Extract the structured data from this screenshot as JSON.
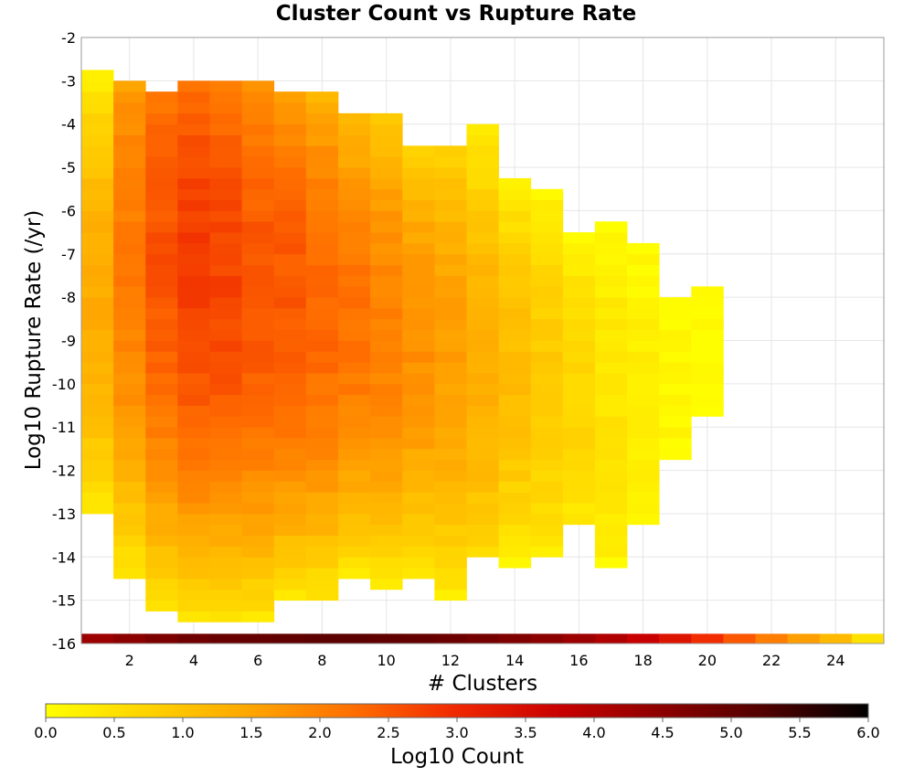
{
  "chart_data": {
    "type": "heatmap",
    "title": "Cluster Count vs Rupture Rate",
    "xlabel": "# Clusters",
    "ylabel": "Log10 Rupture Rate (/yr)",
    "xlim": [
      0.5,
      25.5
    ],
    "ylim": [
      -16,
      -2
    ],
    "x_ticks": [
      2,
      4,
      6,
      8,
      10,
      12,
      14,
      16,
      18,
      20,
      22,
      24
    ],
    "y_ticks": [
      -2,
      -3,
      -4,
      -5,
      -6,
      -7,
      -8,
      -9,
      -10,
      -11,
      -12,
      -13,
      -14,
      -15,
      -16
    ],
    "bin_width_x": 1,
    "bin_height_y": 0.25,
    "grid": true,
    "colorbar": {
      "label": "Log10 Count",
      "range": [
        0.0,
        6.0
      ],
      "ticks": [
        "0.0",
        "0.5",
        "1.0",
        "1.5",
        "2.0",
        "2.5",
        "3.0",
        "3.5",
        "4.0",
        "4.5",
        "5.0",
        "5.5",
        "6.0"
      ],
      "colormap": [
        "#ffff00",
        "#ffd200",
        "#ffa500",
        "#ff6e00",
        "#f02800",
        "#c80000",
        "#8c0000",
        "#500000",
        "#000000"
      ],
      "placement": "bottom"
    },
    "columns": [
      {
        "x": 1,
        "y_range": [
          -13.0,
          -2.75
        ],
        "peak_y": -8.0,
        "peak_value": 1.4
      },
      {
        "x": 2,
        "y_range": [
          -14.5,
          -3.0
        ],
        "peak_y": -7.0,
        "peak_value": 2.1
      },
      {
        "x": 3,
        "y_range": [
          -15.25,
          -3.25
        ],
        "peak_y": -7.0,
        "peak_value": 2.55
      },
      {
        "x": 4,
        "y_range": [
          -15.5,
          -3.0
        ],
        "peak_y": -7.25,
        "peak_value": 2.8
      },
      {
        "x": 5,
        "y_range": [
          -15.5,
          -3.0
        ],
        "peak_y": -7.5,
        "peak_value": 2.7
      },
      {
        "x": 6,
        "y_range": [
          -15.5,
          -3.0
        ],
        "peak_y": -7.75,
        "peak_value": 2.55
      },
      {
        "x": 7,
        "y_range": [
          -15.0,
          -3.25
        ],
        "peak_y": -8.0,
        "peak_value": 2.5
      },
      {
        "x": 8,
        "y_range": [
          -15.0,
          -3.25
        ],
        "peak_y": -8.25,
        "peak_value": 2.35
      },
      {
        "x": 9,
        "y_range": [
          -14.5,
          -3.75
        ],
        "peak_y": -8.5,
        "peak_value": 2.2
      },
      {
        "x": 10,
        "y_range": [
          -14.75,
          -3.75
        ],
        "peak_y": -8.75,
        "peak_value": 2.0
      },
      {
        "x": 11,
        "y_range": [
          -14.5,
          -4.5
        ],
        "peak_y": -9.0,
        "peak_value": 1.8
      },
      {
        "x": 12,
        "y_range": [
          -15.0,
          -4.5
        ],
        "peak_y": -9.25,
        "peak_value": 1.6
      },
      {
        "x": 13,
        "y_range": [
          -14.0,
          -4.0
        ],
        "peak_y": -9.5,
        "peak_value": 1.35
      },
      {
        "x": 14,
        "y_range": [
          -14.25,
          -5.25
        ],
        "peak_y": -9.75,
        "peak_value": 1.1
      },
      {
        "x": 15,
        "y_range": [
          -14.0,
          -5.5
        ],
        "peak_y": -10.0,
        "peak_value": 0.9
      },
      {
        "x": 16,
        "y_range": [
          -13.25,
          -6.5
        ],
        "peak_y": -10.25,
        "peak_value": 0.7
      },
      {
        "x": 17,
        "y_range": [
          -14.25,
          -6.25
        ],
        "peak_y": -10.5,
        "peak_value": 0.45
      },
      {
        "x": 18,
        "y_range": [
          -13.25,
          -6.75
        ],
        "peak_y": -10.75,
        "peak_value": 0.3
      },
      {
        "x": 19,
        "y_range": [
          -11.75,
          -8.0
        ],
        "peak_y": -10.5,
        "peak_value": 0.15
      },
      {
        "x": 20,
        "y_range": [
          -10.75,
          -7.75
        ],
        "peak_y": -9.0,
        "peak_value": 0.05
      }
    ],
    "bottom_row": {
      "y": -15.9,
      "values": [
        4.3,
        4.5,
        4.7,
        4.85,
        4.95,
        5.0,
        5.05,
        5.1,
        5.1,
        5.05,
        5.0,
        4.9,
        4.8,
        4.65,
        4.5,
        4.3,
        4.05,
        3.75,
        3.35,
        2.95,
        2.5,
        2.05,
        1.6,
        1.15,
        0.5
      ]
    }
  }
}
